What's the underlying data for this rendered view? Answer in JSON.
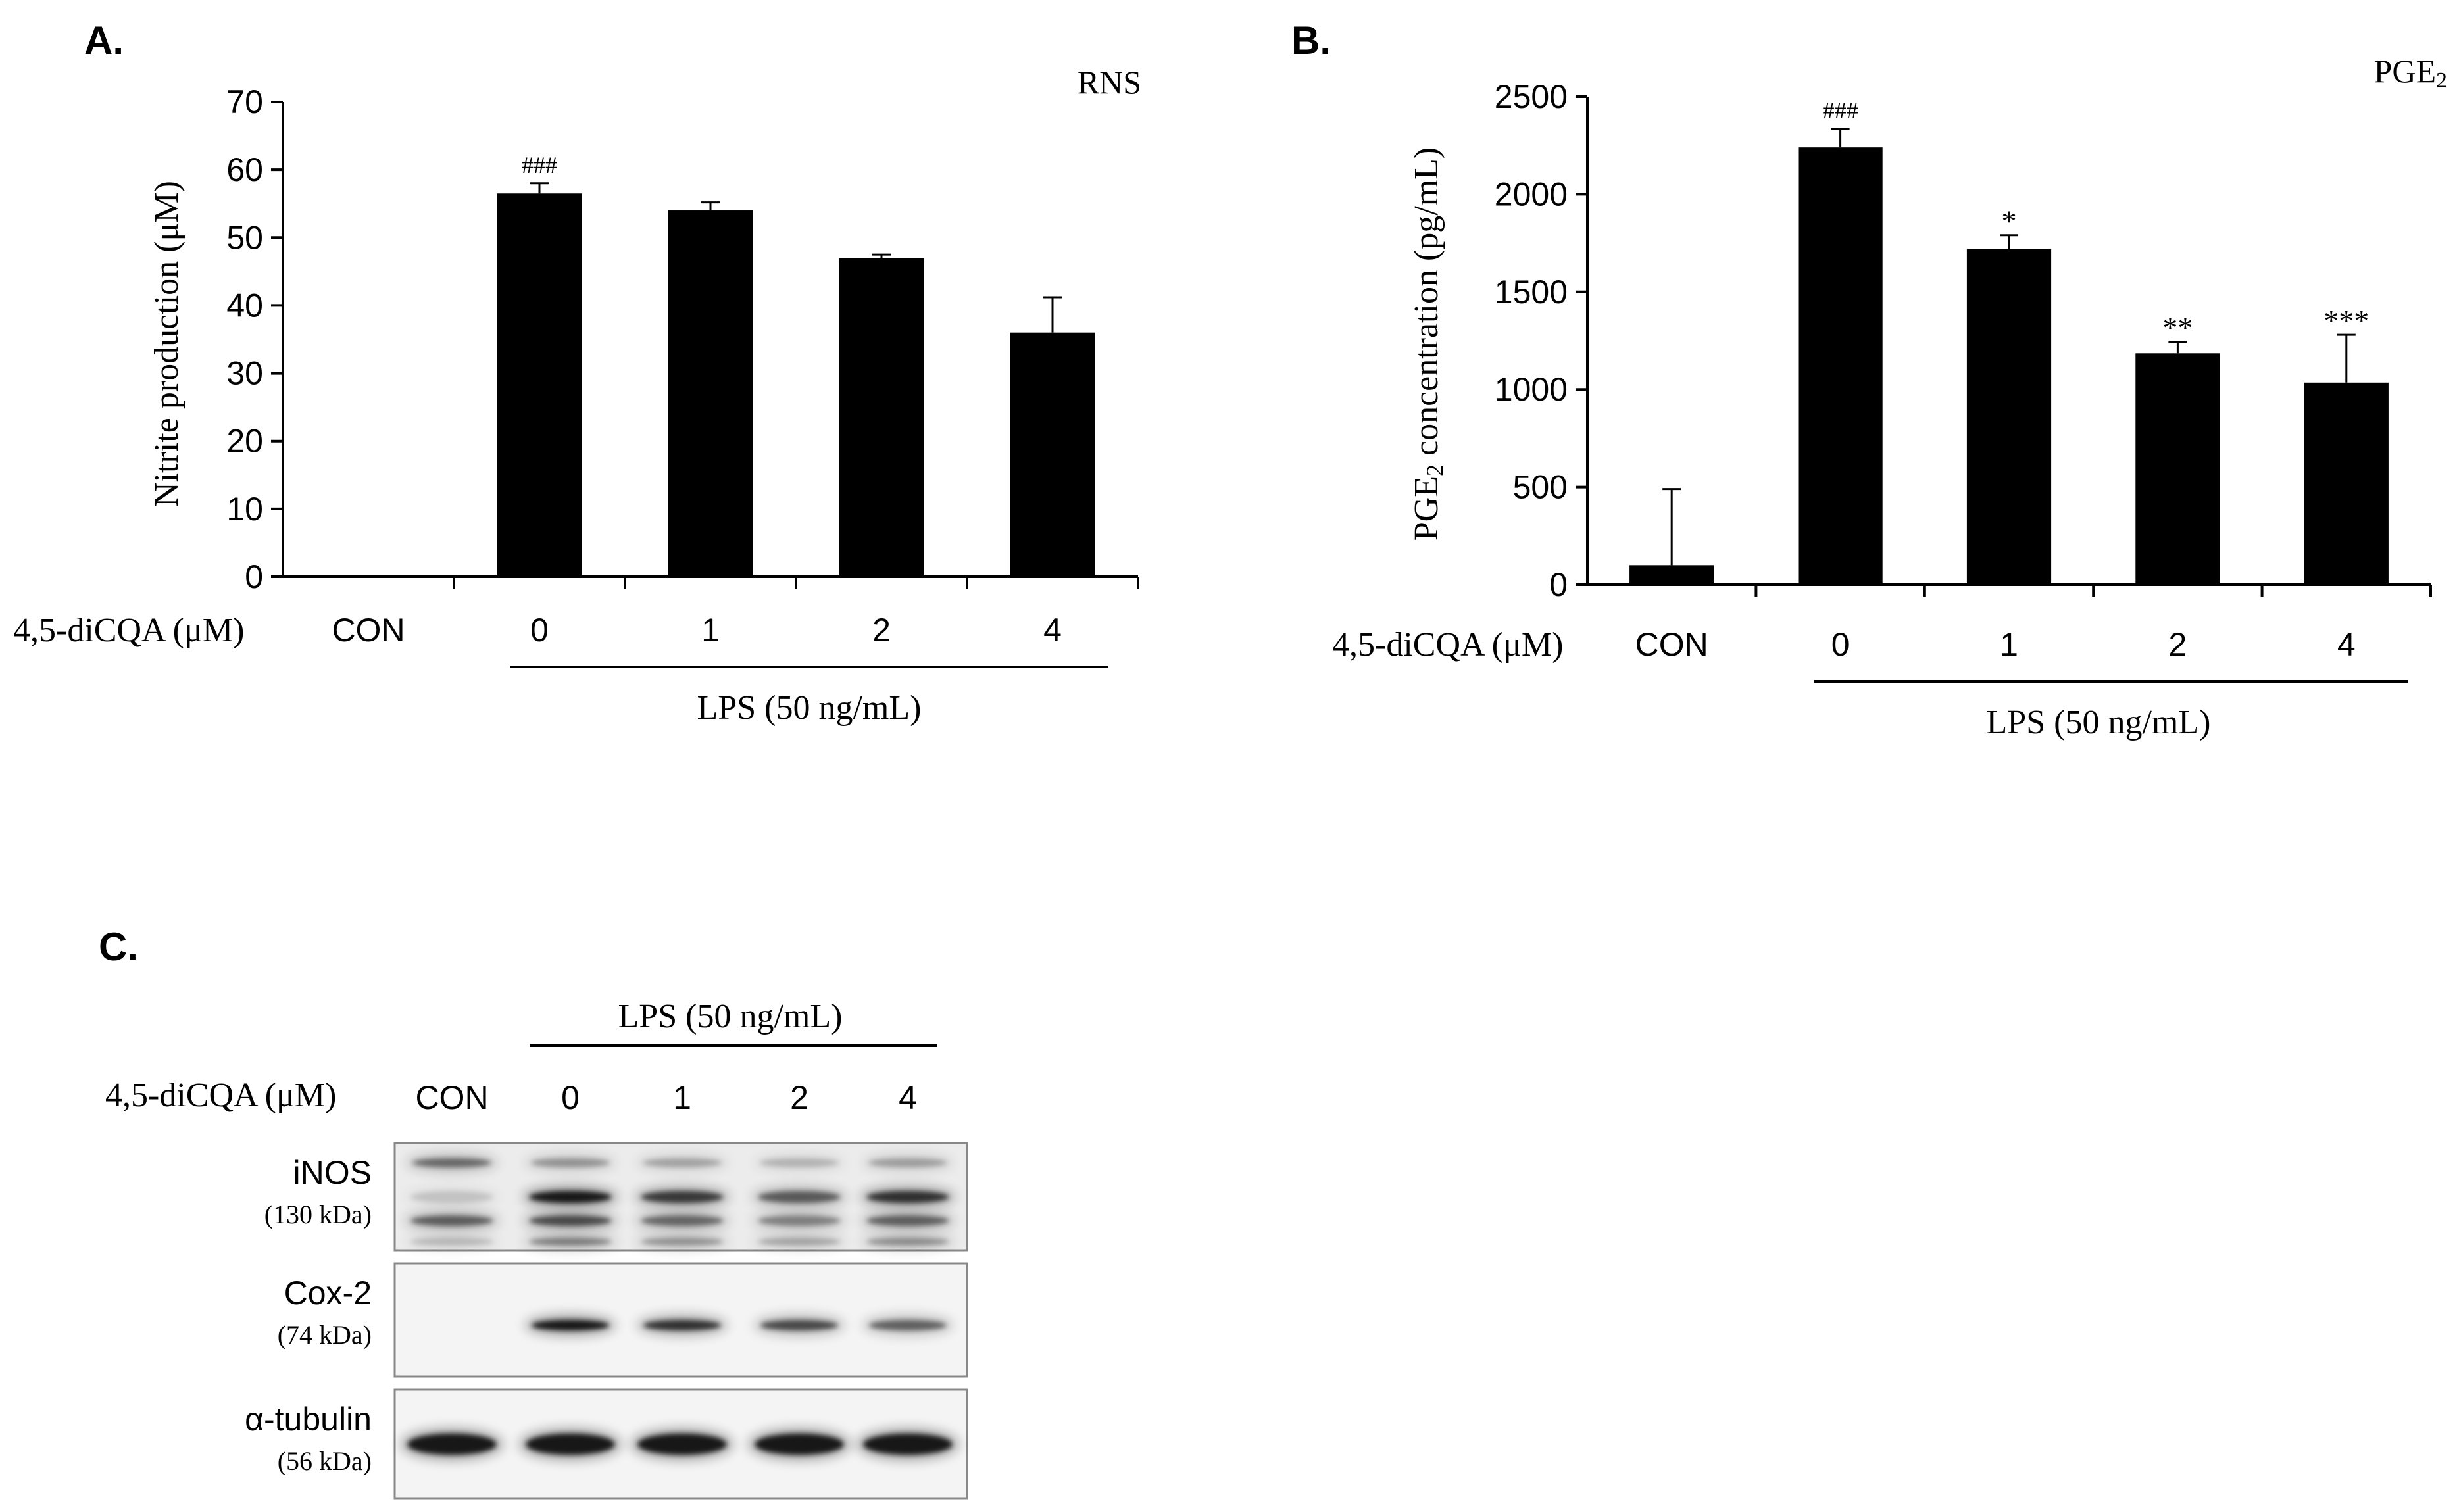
{
  "panel_a": {
    "letter": "A.",
    "corner_label": "RNS",
    "treatment_label": "4,5-diCQA (μM)",
    "lps_label": "LPS (50 ng/mL)"
  },
  "panel_b": {
    "letter": "B.",
    "corner_label_main": "PGE",
    "corner_label_sub": "2",
    "treatment_label": "4,5-diCQA (μM)",
    "lps_label": "LPS (50 ng/mL)",
    "ylabel_main_1": "PGE",
    "ylabel_sub": "2",
    "ylabel_main_2": " concentration (pg/mL)"
  },
  "panel_c": {
    "letter": "C.",
    "lps_label": "LPS (50 ng/mL)",
    "treatment_label": "4,5-diCQA (μM)",
    "lanes": [
      "CON",
      "0",
      "1",
      "2",
      "4"
    ],
    "blots": [
      {
        "name": "iNOS",
        "size": "(130 kDa)",
        "intensity": [
          0.3,
          1.0,
          0.8,
          0.62,
          0.85
        ]
      },
      {
        "name": "Cox-2",
        "size": "(74 kDa)",
        "intensity": [
          0.0,
          1.0,
          0.85,
          0.72,
          0.6
        ]
      },
      {
        "name": "α-tubulin",
        "size": "(56 kDa)",
        "intensity": [
          1.0,
          1.0,
          1.0,
          1.0,
          1.0
        ]
      }
    ]
  },
  "chart_data": [
    {
      "type": "bar",
      "panel": "A",
      "title": "",
      "xlabel": "",
      "ylabel": "Nitrite production (μM)",
      "categories": [
        "CON",
        "0",
        "1",
        "2",
        "4"
      ],
      "values": [
        0,
        56.5,
        54,
        47,
        36
      ],
      "errors": [
        0.2,
        1.5,
        1.2,
        0.5,
        5.2
      ],
      "annotations": [
        "",
        "###",
        "",
        "",
        ""
      ],
      "ylim": [
        0,
        70
      ],
      "yticks": [
        0,
        10,
        20,
        30,
        40,
        50,
        60,
        70
      ],
      "grid": false,
      "color": "#000000"
    },
    {
      "type": "bar",
      "panel": "B",
      "title": "",
      "xlabel": "",
      "ylabel": "PGE2 concentration (pg/mL)",
      "categories": [
        "CON",
        "0",
        "1",
        "2",
        "4"
      ],
      "values": [
        100,
        2240,
        1720,
        1185,
        1035
      ],
      "errors": [
        390,
        95,
        70,
        60,
        245
      ],
      "annotations": [
        "",
        "###",
        "*",
        "**",
        "***"
      ],
      "ylim": [
        0,
        2500
      ],
      "yticks": [
        0,
        500,
        1000,
        1500,
        2000,
        2500
      ],
      "grid": false,
      "color": "#000000"
    }
  ]
}
